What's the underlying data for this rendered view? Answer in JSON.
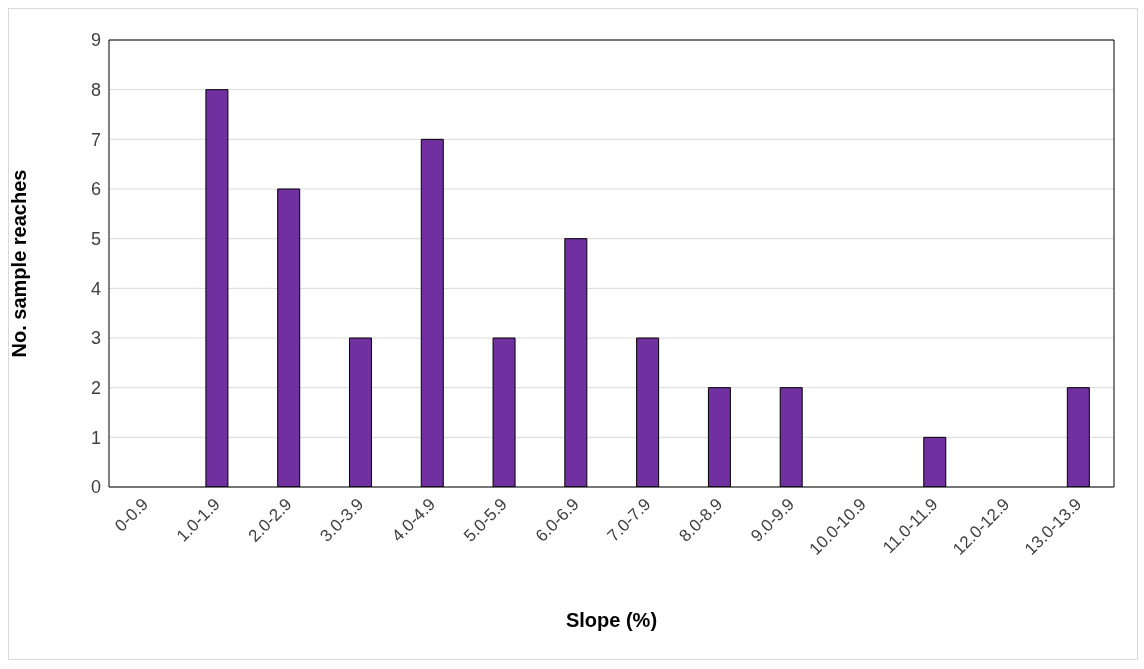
{
  "chart_data": {
    "type": "bar",
    "xlabel": "Slope (%)",
    "ylabel": "No. sample reaches",
    "categories": [
      "0-0.9",
      "1.0-1.9",
      "2.0-2.9",
      "3.0-3.9",
      "4.0-4.9",
      "5.0-5.9",
      "6.0-6.9",
      "7.0-7.9",
      "8.0-8.9",
      "9.0-9.9",
      "10.0-10.9",
      "11.0-11.9",
      "12.0-12.9",
      "13.0-13.9"
    ],
    "values": [
      0,
      8,
      6,
      3,
      7,
      3,
      5,
      3,
      2,
      2,
      0,
      1,
      0,
      2
    ],
    "color": "#7030a0",
    "ylim": [
      0,
      9
    ],
    "yticks": [
      0,
      1,
      2,
      3,
      4,
      5,
      6,
      7,
      8,
      9
    ],
    "grid": "y"
  }
}
